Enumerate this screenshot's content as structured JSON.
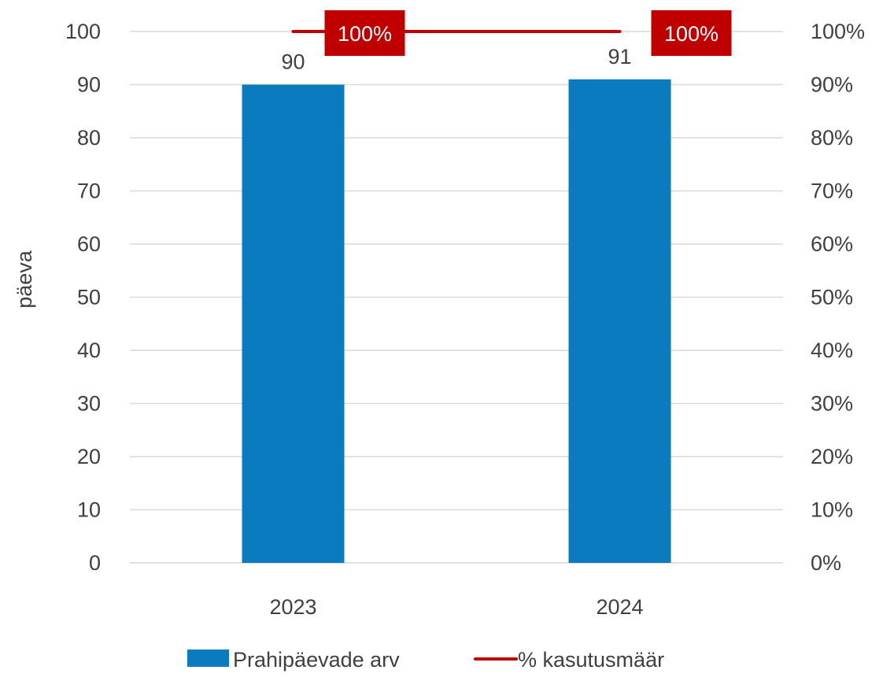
{
  "chart_data": {
    "type": "bar",
    "categories": [
      "2023",
      "2024"
    ],
    "ylabel": "päeva",
    "ylim": [
      0,
      100
    ],
    "y_ticks": [
      "0",
      "10",
      "20",
      "30",
      "40",
      "50",
      "60",
      "70",
      "80",
      "90",
      "100"
    ],
    "y2lim": [
      0,
      1
    ],
    "y2_ticks": [
      "0%",
      "10%",
      "20%",
      "30%",
      "40%",
      "50%",
      "60%",
      "70%",
      "80%",
      "90%",
      "100%"
    ],
    "grid": true,
    "legend_position": "bottom",
    "series": [
      {
        "name": "Prahipäevade arv",
        "type": "bar",
        "axis": "left",
        "values": [
          90,
          91
        ],
        "labels": [
          "90",
          "91"
        ],
        "color": "#0a7bbf"
      },
      {
        "name": "% kasutusmäär",
        "type": "line",
        "axis": "right",
        "values": [
          1.0,
          1.0
        ],
        "labels": [
          "100%",
          "100%"
        ],
        "color": "#c00000"
      }
    ]
  }
}
